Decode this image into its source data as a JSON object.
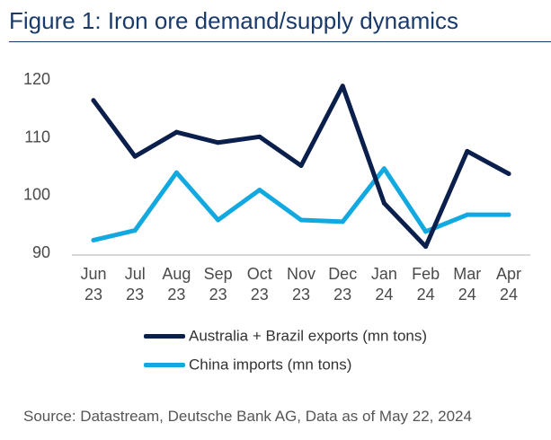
{
  "title": "Figure 1: Iron ore demand/supply dynamics",
  "source": "Source: Datastream, Deutsche Bank AG, Data as of May 22, 2024",
  "chart_data": {
    "type": "line",
    "title": "Figure 1: Iron ore demand/supply dynamics",
    "xlabel": "",
    "ylabel": "",
    "categories": [
      [
        "Jun",
        "23"
      ],
      [
        "Jul",
        "23"
      ],
      [
        "Aug",
        "23"
      ],
      [
        "Sep",
        "23"
      ],
      [
        "Oct",
        "23"
      ],
      [
        "Nov",
        "23"
      ],
      [
        "Dec",
        "23"
      ],
      [
        "Jan",
        "24"
      ],
      [
        "Feb",
        "24"
      ],
      [
        "Mar",
        "24"
      ],
      [
        "Apr",
        "24"
      ]
    ],
    "ylim": [
      90,
      120
    ],
    "yticks": [
      90,
      100,
      110,
      120
    ],
    "grid": false,
    "legend_position": "bottom",
    "series": [
      {
        "name": "Australia + Brazil exports (mn tons)",
        "color": "#0b1f4d",
        "values": [
          116.3,
          106.6,
          110.8,
          109.0,
          110.0,
          105.0,
          118.8,
          98.5,
          91.0,
          107.5,
          103.6
        ]
      },
      {
        "name": "China imports (mn tons)",
        "color": "#12a9e0",
        "values": [
          92.1,
          93.8,
          103.8,
          95.6,
          100.8,
          95.6,
          95.3,
          104.5,
          93.6,
          96.5,
          96.5
        ]
      }
    ]
  }
}
